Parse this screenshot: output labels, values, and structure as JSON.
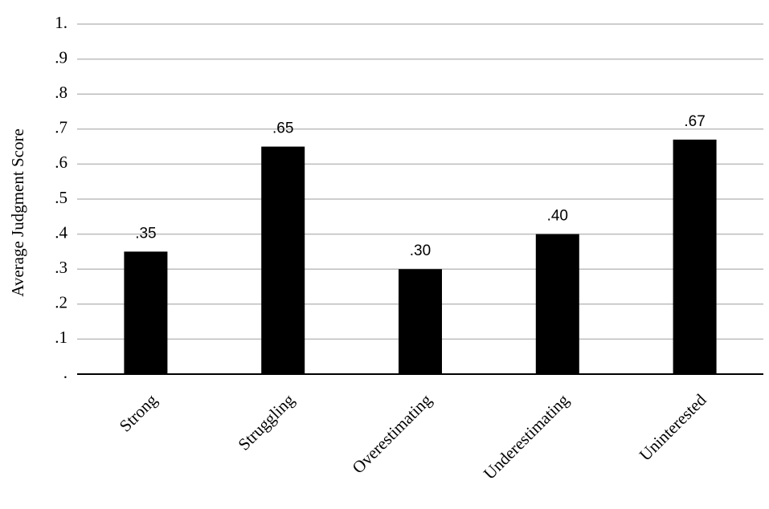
{
  "chart_data": {
    "type": "bar",
    "y_axis_label": "Average Judgment Score",
    "categories": [
      "Strong",
      "Struggling",
      "Overestimating",
      "Underestimating",
      "Uninterested"
    ],
    "values": [
      0.35,
      0.65,
      0.3,
      0.4,
      0.67
    ],
    "value_labels": [
      ".35",
      ".65",
      ".30",
      ".40",
      ".67"
    ],
    "color": "#000000",
    "ylim": [
      0,
      1
    ],
    "yticks": [
      {
        "value": 0,
        "label": "."
      },
      {
        "value": 0.1,
        "label": ".1"
      },
      {
        "value": 0.2,
        "label": ".2"
      },
      {
        "value": 0.3,
        "label": ".3"
      },
      {
        "value": 0.4,
        "label": ".4"
      },
      {
        "value": 0.5,
        "label": ".5"
      },
      {
        "value": 0.6,
        "label": ".6"
      },
      {
        "value": 0.7,
        "label": ".7"
      },
      {
        "value": 0.8,
        "label": ".8"
      },
      {
        "value": 0.9,
        "label": ".9"
      },
      {
        "value": 1,
        "label": "1."
      }
    ],
    "grid": true
  }
}
